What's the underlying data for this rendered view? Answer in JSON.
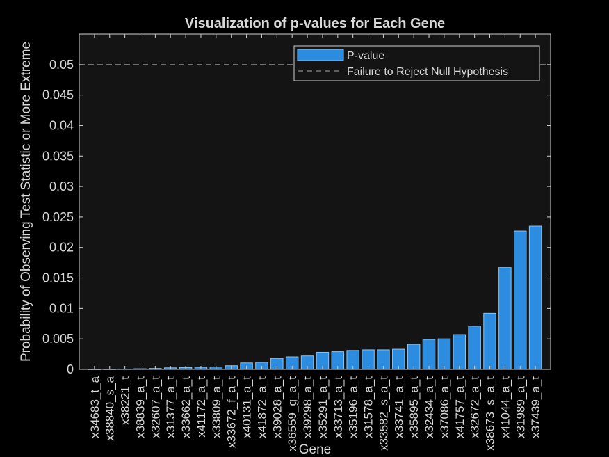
{
  "chart_data": {
    "type": "bar",
    "title": "Visualization of p-values for Each Gene",
    "xlabel": "Gene",
    "ylabel": "Probability of Observing Test Statistic or More Extreme",
    "ylim": [
      0,
      0.055
    ],
    "yticks": [
      0,
      0.005,
      0.01,
      0.015,
      0.02,
      0.025,
      0.03,
      0.035,
      0.04,
      0.045,
      0.05
    ],
    "ytick_labels": [
      "0",
      "0.005",
      "0.01",
      "0.015",
      "0.02",
      "0.025",
      "0.03",
      "0.035",
      "0.04",
      "0.045",
      "0.05"
    ],
    "categories": [
      "x34683_t_a",
      "x38840_s_a",
      "x38221_t",
      "x38839_a_t",
      "x32607_a_t",
      "x31377_a_t",
      "x33662_a_t",
      "x41172_a_t",
      "x33809_a_t",
      "x33672_f_a_t",
      "x40131_a_t",
      "x41872_a_t",
      "x39028_a_t",
      "x36559_g_a_t",
      "x39298_a_t",
      "x35291_a_t",
      "x33713_a_t",
      "x35196_a_t",
      "x31578_a_t",
      "x33582_s_a_t",
      "x33741_a_t",
      "x35895_a_t",
      "x32434_a_t",
      "x37086_a_t",
      "x41757_a_t",
      "x32672_a_t",
      "x38673_s_a_t",
      "x41044_a_t",
      "x31989_a_t",
      "x37439_a_t"
    ],
    "values": [
      2e-05,
      3e-05,
      5e-05,
      0.0001,
      0.00015,
      0.00025,
      0.0003,
      0.00035,
      0.0004,
      0.0006,
      0.00105,
      0.00115,
      0.0018,
      0.00205,
      0.0022,
      0.0028,
      0.0029,
      0.0031,
      0.0032,
      0.0032,
      0.0033,
      0.0041,
      0.0049,
      0.005,
      0.0057,
      0.0071,
      0.0092,
      0.0167,
      0.0227,
      0.0235
    ],
    "threshold": 0.05,
    "series": [
      {
        "name": "P-value",
        "color": "#2B8CE0"
      },
      {
        "name": "Failure to Reject Null Hypothesis",
        "color": "#A8A8A8",
        "style": "dashed"
      }
    ],
    "legend_position": "top-right",
    "grid": false,
    "colors": {
      "background": "#000000",
      "axes_bg": "#141414",
      "axis": "#D0D0D0",
      "text": "#D8D8D8",
      "bar_edge": "#8EC3F0"
    }
  }
}
